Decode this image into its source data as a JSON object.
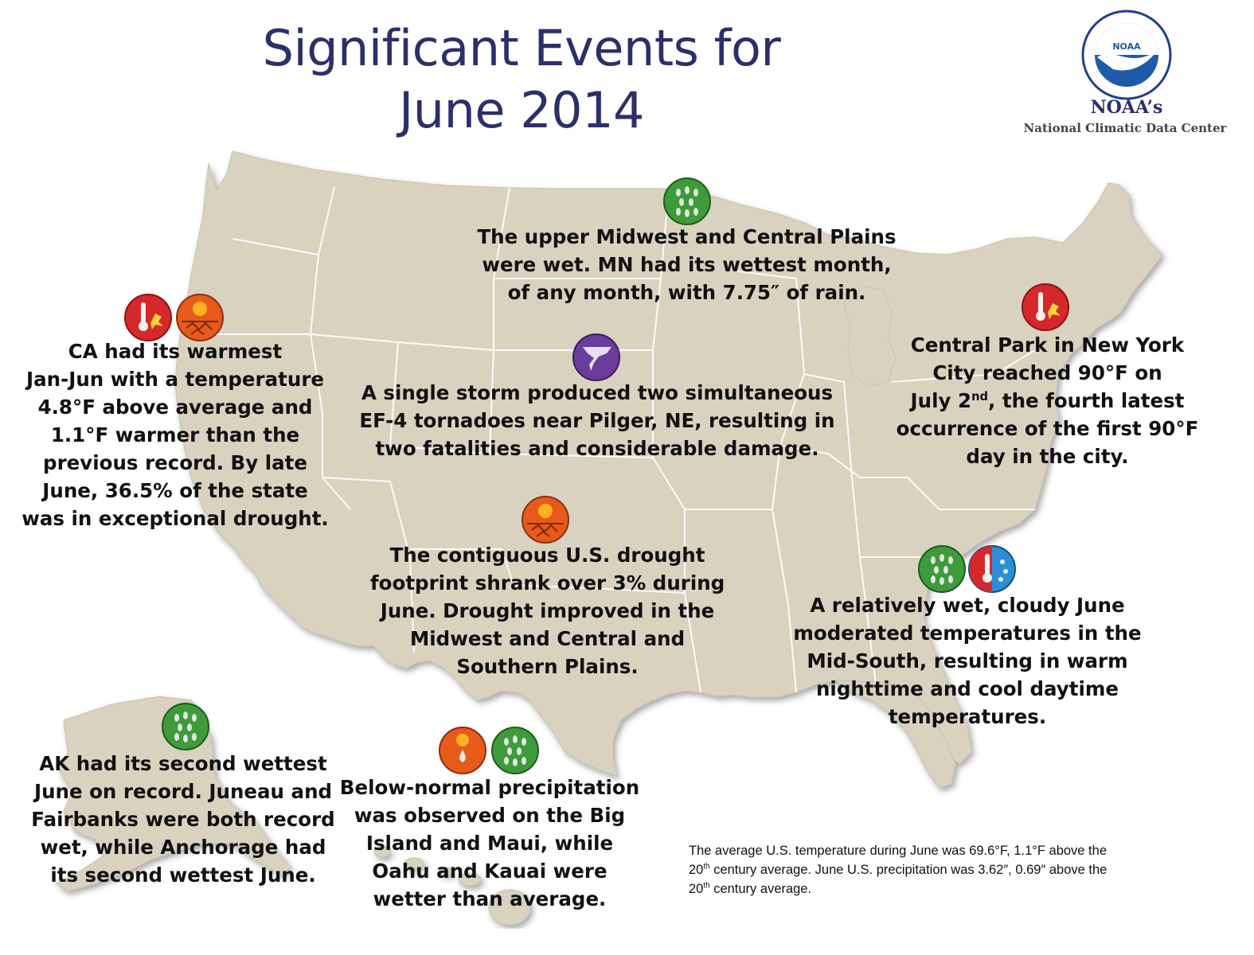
{
  "title": {
    "line1": "Significant Events for",
    "line2": "June 2014"
  },
  "logo": {
    "emblem_text": "NOAA",
    "org": "NOAA’s",
    "center": "National Climatic Data Center"
  },
  "colors": {
    "land": "#d8d2bf",
    "border": "#ffffff",
    "title": "#2b2f6b",
    "rain_icon": "#3e9a3a",
    "heat_icon": "#d5282a",
    "drought_icon": "#e85a1a",
    "tornado_icon": "#6a3d9a",
    "cool_icon": "#2b8fd6"
  },
  "events": {
    "california": {
      "icons": [
        "heat-icon",
        "drought-icon"
      ],
      "lines": [
        "CA had its warmest",
        "Jan-Jun with a temperature",
        "4.8°F above average and",
        "1.1°F warmer than the",
        "previous record.  By late",
        "June, 36.5% of the state",
        "was in exceptional drought."
      ]
    },
    "midwest": {
      "icons": [
        "rain-icon"
      ],
      "lines": [
        "The upper Midwest and Central Plains",
        "were wet. MN had its wettest month,",
        "of any month, with 7.75″ of rain."
      ]
    },
    "tornado": {
      "icons": [
        "tornado-icon"
      ],
      "lines": [
        "A single storm produced two simultaneous",
        "EF-4 tornadoes near Pilger, NE, resulting in",
        "two fatalities and considerable damage."
      ]
    },
    "new_york": {
      "icons": [
        "heat-icon"
      ],
      "line1": "Central Park in New York",
      "line2": "City reached 90°F on",
      "line3_pre": "July 2",
      "line3_sup": "nd",
      "line3_post": ", the fourth latest",
      "line4": "occurrence of the first 90°F",
      "line5": "day in the city."
    },
    "drought": {
      "icons": [
        "drought-icon"
      ],
      "lines": [
        "The contiguous U.S. drought",
        "footprint shrank over 3% during",
        "June. Drought improved in the",
        "Midwest and Central and",
        "Southern Plains."
      ]
    },
    "mid_south": {
      "icons": [
        "rain-icon",
        "warm-cool-icon"
      ],
      "lines": [
        "A relatively wet, cloudy June",
        "moderated temperatures in the",
        "Mid-South, resulting in warm",
        "nighttime and cool daytime",
        "temperatures."
      ]
    },
    "alaska": {
      "icons": [
        "rain-icon"
      ],
      "lines": [
        "AK had its second wettest",
        "June on record. Juneau and",
        "Fairbanks were both record",
        "wet, while Anchorage had",
        "its second wettest June."
      ]
    },
    "hawaii": {
      "icons": [
        "dry-icon",
        "rain-icon"
      ],
      "lines": [
        "Below-normal precipitation",
        "was observed on the Big",
        "Island and Maui, while",
        "Oahu and Kauai were",
        "wetter than average."
      ]
    }
  },
  "footnote": {
    "line1": "The average U.S. temperature during June was 69.6°F, 1.1°F above the",
    "line2_sup": "th",
    "line2_pre": "20",
    "line2_post": " century average. June U.S. precipitation was 3.62″, 0.69″ above the",
    "line3_pre": "20",
    "line3_sup": "th",
    "line3_post": " century average."
  }
}
